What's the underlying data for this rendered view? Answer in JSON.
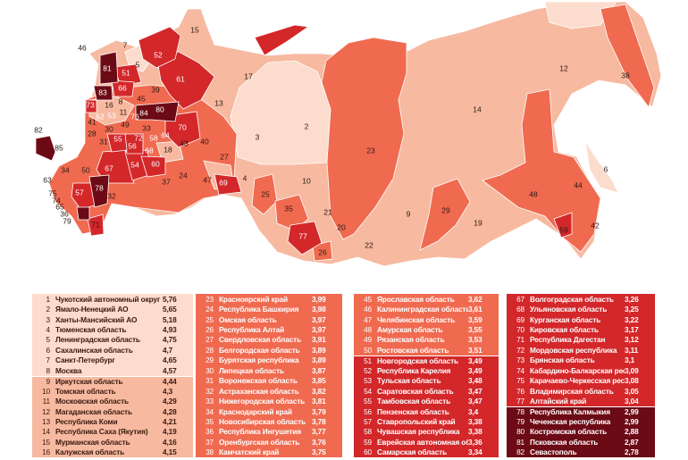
{
  "tier_colors": {
    "t1": "#fcdccd",
    "t2": "#f7b9a0",
    "t3": "#f06a50",
    "t4": "#d3272a",
    "t5": "#6c0a15"
  },
  "map_labels": [
    "46",
    "7",
    "5",
    "52",
    "15",
    "81",
    "51",
    "61",
    "17",
    "66",
    "39",
    "83",
    "45",
    "73",
    "16",
    "8",
    "11",
    "84",
    "80",
    "13",
    "62",
    "53",
    "76",
    "41",
    "49",
    "33",
    "70",
    "30",
    "28",
    "55",
    "72",
    "58",
    "64",
    "40",
    "31",
    "56",
    "18",
    "43",
    "68",
    "27",
    "82",
    "85",
    "34",
    "50",
    "67",
    "54",
    "60",
    "37",
    "24",
    "47",
    "69",
    "4",
    "63",
    "57",
    "78",
    "32",
    "75",
    "74",
    "65",
    "36",
    "79",
    "71",
    "2",
    "3",
    "23",
    "14",
    "12",
    "38",
    "10",
    "25",
    "35",
    "21",
    "20",
    "77",
    "26",
    "22",
    "9",
    "29",
    "19",
    "48",
    "44",
    "6",
    "59",
    "42"
  ],
  "ranking": {
    "columns": [
      [
        {
          "rank": "1",
          "name": "Чукотский автономный округ",
          "value": "5,76",
          "tier": "t1"
        },
        {
          "rank": "2",
          "name": "Ямало-Ненецкий АО",
          "value": "5,65",
          "tier": "t1"
        },
        {
          "rank": "3",
          "name": "Ханты-Мансийский АО",
          "value": "5,18",
          "tier": "t1"
        },
        {
          "rank": "4",
          "name": "Тюменская область",
          "value": "4,93",
          "tier": "t1"
        },
        {
          "rank": "5",
          "name": "Ленинградская область",
          "value": "4,75",
          "tier": "t1"
        },
        {
          "rank": "6",
          "name": "Сахалинская область",
          "value": "4,7",
          "tier": "t1"
        },
        {
          "rank": "7",
          "name": "Санкт-Петербург",
          "value": "4,65",
          "tier": "t1"
        },
        {
          "rank": "8",
          "name": "Москва",
          "value": "4,57",
          "tier": "t1"
        },
        {
          "rank": "9",
          "name": "Иркутская область",
          "value": "4,44",
          "tier": "t2"
        },
        {
          "rank": "10",
          "name": "Томская область",
          "value": "4,3",
          "tier": "t2"
        },
        {
          "rank": "11",
          "name": "Московская область",
          "value": "4,29",
          "tier": "t2"
        },
        {
          "rank": "12",
          "name": "Магаданская область",
          "value": "4,28",
          "tier": "t2"
        },
        {
          "rank": "13",
          "name": "Республика Коми",
          "value": "4,21",
          "tier": "t2"
        },
        {
          "rank": "14",
          "name": "Республика Саха (Якутия)",
          "value": "4,19",
          "tier": "t2"
        },
        {
          "rank": "15",
          "name": "Мурманская область",
          "value": "4,16",
          "tier": "t2"
        },
        {
          "rank": "16",
          "name": "Калужская область",
          "value": "4,15",
          "tier": "t2"
        }
      ],
      [
        {
          "rank": "23",
          "name": "Красноярский край",
          "value": "3,99",
          "tier": "t3"
        },
        {
          "rank": "24",
          "name": "Республика Башкирия",
          "value": "3,98",
          "tier": "t3"
        },
        {
          "rank": "25",
          "name": "Омская область",
          "value": "3,97",
          "tier": "t3"
        },
        {
          "rank": "26",
          "name": "Республика Алтай",
          "value": "3,97",
          "tier": "t3"
        },
        {
          "rank": "27",
          "name": "Свердловская область",
          "value": "3,91",
          "tier": "t3"
        },
        {
          "rank": "28",
          "name": "Белгородская область",
          "value": "3,89",
          "tier": "t3"
        },
        {
          "rank": "29",
          "name": "Бурятская республика",
          "value": "3,89",
          "tier": "t3"
        },
        {
          "rank": "30",
          "name": "Липецкая область",
          "value": "3,87",
          "tier": "t3"
        },
        {
          "rank": "31",
          "name": "Воронежская область",
          "value": "3,85",
          "tier": "t3"
        },
        {
          "rank": "32",
          "name": "Астраханская область",
          "value": "3,82",
          "tier": "t3"
        },
        {
          "rank": "33",
          "name": "Нижегородская область",
          "value": "3,81",
          "tier": "t3"
        },
        {
          "rank": "34",
          "name": "Краснодарский край",
          "value": "3,79",
          "tier": "t3"
        },
        {
          "rank": "35",
          "name": "Новосибирская область",
          "value": "3,78",
          "tier": "t3"
        },
        {
          "rank": "36",
          "name": "Республика Ингушетия",
          "value": "3,77",
          "tier": "t3"
        },
        {
          "rank": "37",
          "name": "Оренбургская область",
          "value": "3,76",
          "tier": "t3"
        },
        {
          "rank": "38",
          "name": "Камчатский край",
          "value": "3,75",
          "tier": "t3"
        }
      ],
      [
        {
          "rank": "45",
          "name": "Ярославская область",
          "value": "3,62",
          "tier": "t3"
        },
        {
          "rank": "46",
          "name": "Калининградская область",
          "value": "3,61",
          "tier": "t3"
        },
        {
          "rank": "47",
          "name": "Челябинская область",
          "value": "3,59",
          "tier": "t3"
        },
        {
          "rank": "48",
          "name": "Амурская область",
          "value": "3,55",
          "tier": "t3"
        },
        {
          "rank": "49",
          "name": "Рязанская область",
          "value": "3,53",
          "tier": "t3"
        },
        {
          "rank": "50",
          "name": "Ростовская область",
          "value": "3,51",
          "tier": "t3"
        },
        {
          "rank": "51",
          "name": "Новгородская область",
          "value": "3,49",
          "tier": "t4"
        },
        {
          "rank": "52",
          "name": "Республика Карелия",
          "value": "3,49",
          "tier": "t4"
        },
        {
          "rank": "53",
          "name": "Тульская область",
          "value": "3,48",
          "tier": "t4"
        },
        {
          "rank": "54",
          "name": "Саратовская область",
          "value": "3,47",
          "tier": "t4"
        },
        {
          "rank": "55",
          "name": "Тамбовская область",
          "value": "3,47",
          "tier": "t4"
        },
        {
          "rank": "56",
          "name": "Пензенская область",
          "value": "3,4",
          "tier": "t4"
        },
        {
          "rank": "57",
          "name": "Ставропольский край",
          "value": "3,38",
          "tier": "t4"
        },
        {
          "rank": "58",
          "name": "Чувашская республика",
          "value": "3,38",
          "tier": "t4"
        },
        {
          "rank": "59",
          "name": "Еврейская автономная обл.",
          "value": "3,36",
          "tier": "t4"
        },
        {
          "rank": "60",
          "name": "Самарская область",
          "value": "3,34",
          "tier": "t4"
        }
      ],
      [
        {
          "rank": "67",
          "name": "Волгоградская область",
          "value": "3,26",
          "tier": "t4"
        },
        {
          "rank": "68",
          "name": "Ульяновская область",
          "value": "3,25",
          "tier": "t4"
        },
        {
          "rank": "69",
          "name": "Курганская область",
          "value": "3,22",
          "tier": "t4"
        },
        {
          "rank": "70",
          "name": "Кировская область",
          "value": "3,17",
          "tier": "t4"
        },
        {
          "rank": "71",
          "name": "Республика Дагестан",
          "value": "3,12",
          "tier": "t4"
        },
        {
          "rank": "72",
          "name": "Мордовская республика",
          "value": "3,11",
          "tier": "t4"
        },
        {
          "rank": "73",
          "name": "Брянская область",
          "value": "3,1",
          "tier": "t4"
        },
        {
          "rank": "74",
          "name": "Кабардино-Балкарская респ.",
          "value": "3,09",
          "tier": "t4"
        },
        {
          "rank": "75",
          "name": "Карачаево-Черкесская респ.",
          "value": "3,08",
          "tier": "t4"
        },
        {
          "rank": "76",
          "name": "Владимирская область",
          "value": "3,05",
          "tier": "t4"
        },
        {
          "rank": "77",
          "name": "Алтайский край",
          "value": "3,04",
          "tier": "t4"
        },
        {
          "rank": "78",
          "name": "Республика Калмыкия",
          "value": "2,99",
          "tier": "t5"
        },
        {
          "rank": "79",
          "name": "Чеченская республика",
          "value": "2,99",
          "tier": "t5"
        },
        {
          "rank": "80",
          "name": "Костромская область",
          "value": "2,88",
          "tier": "t5"
        },
        {
          "rank": "81",
          "name": "Псковская область",
          "value": "2,87",
          "tier": "t5"
        },
        {
          "rank": "82",
          "name": "Севастополь",
          "value": "2,78",
          "tier": "t5"
        }
      ]
    ]
  }
}
